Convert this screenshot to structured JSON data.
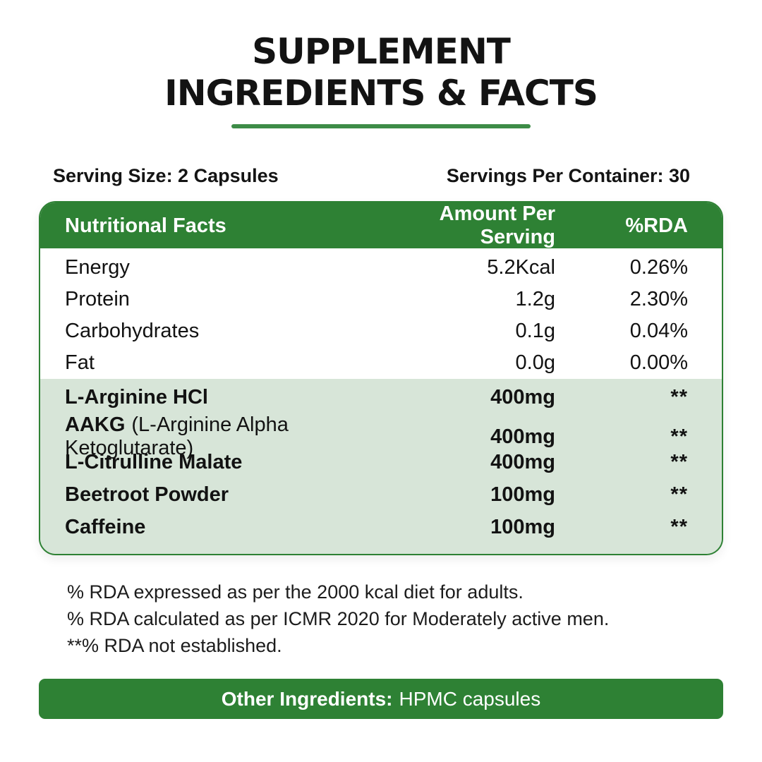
{
  "title": {
    "line1": "SUPPLEMENT",
    "line2": "INGREDIENTS & FACTS"
  },
  "serving": {
    "size_label": "Serving Size: 2 Capsules",
    "per_container_label": "Servings Per Container: 30"
  },
  "table": {
    "headers": {
      "name": "Nutritional Facts",
      "amount": "Amount Per Serving",
      "rda": "%RDA"
    },
    "macro_rows": [
      {
        "name": "Energy",
        "amount": "5.2Kcal",
        "rda": "0.26%"
      },
      {
        "name": "Protein",
        "amount": "1.2g",
        "rda": "2.30%"
      },
      {
        "name": "Carbohydrates",
        "amount": "0.1g",
        "rda": "0.04%"
      },
      {
        "name": "Fat",
        "amount": "0.0g",
        "rda": "0.00%"
      }
    ],
    "ingredient_rows": [
      {
        "name": "L-Arginine HCl",
        "name_secondary": "",
        "amount": "400mg",
        "rda": "**"
      },
      {
        "name": "AAKG",
        "name_secondary": "(L-Arginine Alpha Ketoglutarate)",
        "amount": "400mg",
        "rda": "**"
      },
      {
        "name": "L-Citrulline Malate",
        "name_secondary": "",
        "amount": "400mg",
        "rda": "**"
      },
      {
        "name": "Beetroot Powder",
        "name_secondary": "",
        "amount": "100mg",
        "rda": "**"
      },
      {
        "name": "Caffeine",
        "name_secondary": "",
        "amount": "100mg",
        "rda": "**"
      }
    ]
  },
  "footnotes": [
    "% RDA expressed as per the 2000 kcal diet for adults.",
    "% RDA calculated as per ICMR 2020 for Moderately active men.",
    "**% RDA not established."
  ],
  "other_ingredients": {
    "label": "Other Ingredients:",
    "value": "HPMC capsules"
  },
  "colors": {
    "green": "#2E8134",
    "light_green": "#D7E5D8",
    "underline_green": "#3D8C47",
    "text": "#121212",
    "header_text": "#FFFFFF"
  }
}
